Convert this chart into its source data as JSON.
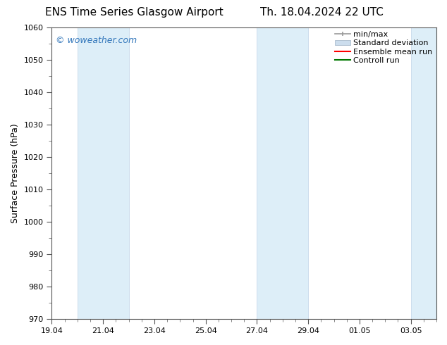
{
  "title_left": "ENS Time Series Glasgow Airport",
  "title_right": "Th. 18.04.2024 22 UTC",
  "ylabel": "Surface Pressure (hPa)",
  "ylim": [
    970,
    1060
  ],
  "yticks": [
    970,
    980,
    990,
    1000,
    1010,
    1020,
    1030,
    1040,
    1050,
    1060
  ],
  "xlim": [
    0,
    15
  ],
  "xtick_labels": [
    "19.04",
    "21.04",
    "23.04",
    "25.04",
    "27.04",
    "29.04",
    "01.05",
    "03.05"
  ],
  "xtick_positions": [
    0,
    2,
    4,
    6,
    8,
    10,
    12,
    14
  ],
  "shade_bands": [
    {
      "xstart": 1.0,
      "xend": 1.5
    },
    {
      "xstart": 1.5,
      "xend": 3.0
    },
    {
      "xstart": 8.0,
      "xend": 8.5
    },
    {
      "xstart": 8.5,
      "xend": 10.0
    },
    {
      "xstart": 14.0,
      "xend": 15.0
    }
  ],
  "shade_bands_simple": [
    {
      "xstart": 1.0,
      "xend": 3.0
    },
    {
      "xstart": 8.0,
      "xend": 10.0
    },
    {
      "xstart": 14.0,
      "xend": 15.0
    }
  ],
  "shade_color": "#ccdded",
  "shade_color_light": "#ddeef8",
  "watermark": "© woweather.com",
  "watermark_color": "#3377bb",
  "legend_labels": [
    "min/max",
    "Standard deviation",
    "Ensemble mean run",
    "Controll run"
  ],
  "legend_colors": [
    "#999999",
    "#bbccdd",
    "#ff0000",
    "#007700"
  ],
  "background_color": "#ffffff",
  "title_fontsize": 11,
  "axis_label_fontsize": 9,
  "tick_label_fontsize": 8,
  "legend_fontsize": 8
}
